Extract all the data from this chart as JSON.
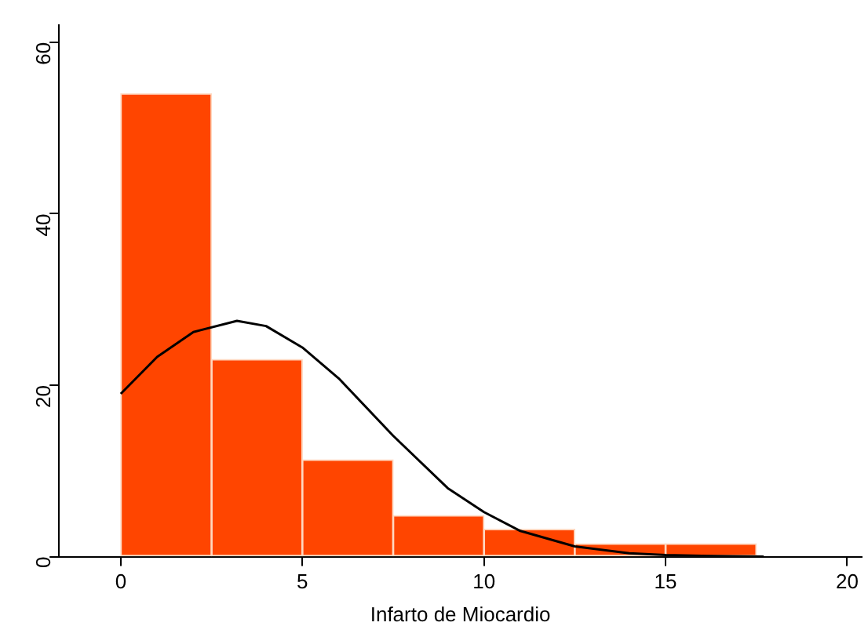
{
  "chart_data": {
    "type": "histogram",
    "xlabel": "Infarto de Miocardio",
    "bins": [
      0,
      2.5,
      5,
      7.5,
      10,
      12.5,
      15,
      17.5
    ],
    "series": [
      {
        "color": "#ff4500",
        "values": [
          54,
          23,
          11.3,
          4.8,
          3.2,
          1.5,
          1.5
        ]
      },
      {
        "type": "line",
        "color": "#000000",
        "x": [
          0,
          1,
          2,
          3.2,
          4,
          5,
          6,
          7.5,
          9,
          10,
          11,
          12.5,
          14,
          15,
          16,
          17.7
        ],
        "values": [
          19,
          23.3,
          26.2,
          27.5,
          26.9,
          24.4,
          20.8,
          14.1,
          8,
          5.2,
          3,
          1.2,
          0.4,
          0.2,
          0.1,
          0
        ]
      }
    ],
    "xlim": [
      -1.7,
      20.4
    ],
    "xticks": [
      0,
      5,
      10,
      15,
      20
    ],
    "ylim": [
      0,
      62
    ],
    "yticks": [
      0,
      20,
      40,
      60
    ],
    "grid": false,
    "legend": false,
    "marker": "none",
    "line_style": "solid"
  }
}
